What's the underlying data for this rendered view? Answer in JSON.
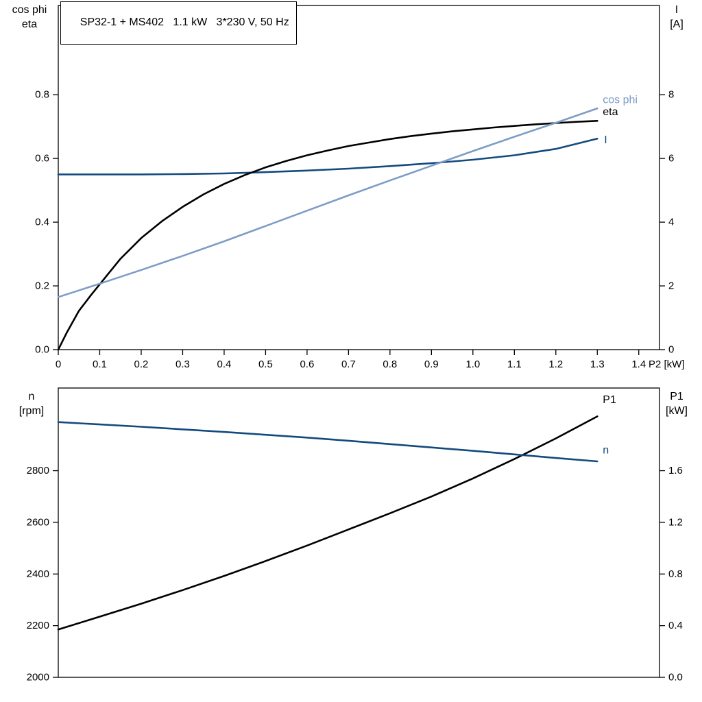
{
  "header": {
    "title": "SP32-1 + MS402   1.1 kW   3*230 V, 50 Hz"
  },
  "corner_labels": {
    "top_left_line1": "cos phi",
    "top_left_line2": "eta",
    "top_right_line1": "I",
    "top_right_line2": "[A]",
    "bottom_left_line1": "n",
    "bottom_left_line2": "[rpm]",
    "bottom_right_line1": "P1",
    "bottom_right_line2": "[kW]"
  },
  "colors": {
    "black": "#000000",
    "dark_blue": "#134a7e",
    "light_blue": "#7c9dc6",
    "frame": "#000000"
  },
  "chart_data": [
    {
      "name": "motor-electrical-chart",
      "type": "line",
      "title": "SP32-1 + MS402   1.1 kW   3*230 V, 50 Hz",
      "grid": false,
      "legend_position": "curve-end-labels",
      "x_axis": {
        "label": "P2 [kW]",
        "min": 0,
        "max": 1.45,
        "tick_values": [
          0,
          0.1,
          0.2,
          0.3,
          0.4,
          0.5,
          0.6,
          0.7,
          0.8,
          0.9,
          1.0,
          1.1,
          1.2,
          1.3,
          1.4
        ],
        "tick_labels": [
          "0",
          "0.1",
          "0.2",
          "0.3",
          "0.4",
          "0.5",
          "0.6",
          "0.7",
          "0.8",
          "0.9",
          "1.0",
          "1.1",
          "1.2",
          "1.3",
          "1.4"
        ]
      },
      "left_axis": {
        "label": "cos phi / eta",
        "min": 0,
        "max": 1.08,
        "tick_values": [
          0,
          0.2,
          0.4,
          0.6,
          0.8
        ],
        "tick_labels": [
          "0.0",
          "0.2",
          "0.4",
          "0.6",
          "0.8"
        ]
      },
      "right_axis": {
        "label": "I [A]",
        "min": 0,
        "max": 10.8,
        "tick_values": [
          0,
          2,
          4,
          6,
          8
        ],
        "tick_labels": [
          "0",
          "2",
          "4",
          "6",
          "8"
        ]
      },
      "series": [
        {
          "name": "I",
          "slug": "current",
          "label": "I",
          "axis": "right",
          "color": "#134a7e",
          "label_dx": 10,
          "label_dy": 2,
          "points": [
            [
              0,
              5.5
            ],
            [
              0.1,
              5.5
            ],
            [
              0.2,
              5.5
            ],
            [
              0.3,
              5.51
            ],
            [
              0.4,
              5.53
            ],
            [
              0.5,
              5.57
            ],
            [
              0.6,
              5.62
            ],
            [
              0.7,
              5.68
            ],
            [
              0.8,
              5.76
            ],
            [
              0.9,
              5.85
            ],
            [
              1.0,
              5.96
            ],
            [
              1.1,
              6.1
            ],
            [
              1.2,
              6.3
            ],
            [
              1.3,
              6.62
            ]
          ]
        },
        {
          "name": "eta",
          "slug": "eta",
          "label": "eta",
          "axis": "left",
          "color": "#000000",
          "label_dx": 8,
          "label_dy": -13,
          "points": [
            [
              0,
              0
            ],
            [
              0.02,
              0.052
            ],
            [
              0.05,
              0.122
            ],
            [
              0.08,
              0.173
            ],
            [
              0.1,
              0.205
            ],
            [
              0.15,
              0.285
            ],
            [
              0.2,
              0.35
            ],
            [
              0.25,
              0.403
            ],
            [
              0.3,
              0.448
            ],
            [
              0.35,
              0.487
            ],
            [
              0.4,
              0.52
            ],
            [
              0.45,
              0.548
            ],
            [
              0.5,
              0.572
            ],
            [
              0.55,
              0.592
            ],
            [
              0.6,
              0.61
            ],
            [
              0.65,
              0.625
            ],
            [
              0.7,
              0.639
            ],
            [
              0.75,
              0.65
            ],
            [
              0.8,
              0.661
            ],
            [
              0.85,
              0.67
            ],
            [
              0.9,
              0.678
            ],
            [
              0.95,
              0.685
            ],
            [
              1.0,
              0.691
            ],
            [
              1.05,
              0.697
            ],
            [
              1.1,
              0.702
            ],
            [
              1.15,
              0.707
            ],
            [
              1.2,
              0.711
            ],
            [
              1.25,
              0.715
            ],
            [
              1.3,
              0.718
            ]
          ]
        },
        {
          "name": "cos phi",
          "slug": "cos-phi",
          "label": "cos phi",
          "axis": "left",
          "color": "#7c9dc6",
          "label_dx": 8,
          "label_dy": -12,
          "points": [
            [
              0,
              0.165
            ],
            [
              0.1,
              0.207
            ],
            [
              0.2,
              0.25
            ],
            [
              0.3,
              0.294
            ],
            [
              0.4,
              0.34
            ],
            [
              0.5,
              0.388
            ],
            [
              0.6,
              0.436
            ],
            [
              0.7,
              0.484
            ],
            [
              0.8,
              0.531
            ],
            [
              0.9,
              0.577
            ],
            [
              1.0,
              0.623
            ],
            [
              1.1,
              0.668
            ],
            [
              1.2,
              0.712
            ],
            [
              1.3,
              0.757
            ]
          ]
        }
      ]
    },
    {
      "name": "motor-speed-power-chart",
      "type": "line",
      "title": "",
      "grid": false,
      "legend_position": "curve-end-labels",
      "x_axis": {
        "label": "",
        "min": 0,
        "max": 1.45,
        "tick_values": [],
        "tick_labels": []
      },
      "left_axis": {
        "label": "n [rpm]",
        "min": 2000,
        "max": 3120,
        "tick_values": [
          2000,
          2200,
          2400,
          2600,
          2800
        ],
        "tick_labels": [
          "2000",
          "2200",
          "2400",
          "2600",
          "2800"
        ]
      },
      "right_axis": {
        "label": "P1 [kW]",
        "min": 0,
        "max": 2.24,
        "tick_values": [
          0,
          0.4,
          0.8,
          1.2,
          1.6
        ],
        "tick_labels": [
          "0.0",
          "0.4",
          "0.8",
          "1.2",
          "1.6"
        ]
      },
      "series": [
        {
          "name": "P1",
          "slug": "input-power",
          "label": "P1",
          "axis": "right",
          "color": "#000000",
          "label_dx": 8,
          "label_dy": -24,
          "points": [
            [
              0,
              0.37
            ],
            [
              0.1,
              0.47
            ],
            [
              0.2,
              0.57
            ],
            [
              0.3,
              0.675
            ],
            [
              0.4,
              0.785
            ],
            [
              0.5,
              0.9
            ],
            [
              0.6,
              1.02
            ],
            [
              0.7,
              1.145
            ],
            [
              0.8,
              1.27
            ],
            [
              0.9,
              1.4
            ],
            [
              1.0,
              1.54
            ],
            [
              1.1,
              1.69
            ],
            [
              1.2,
              1.85
            ],
            [
              1.3,
              2.02
            ]
          ]
        },
        {
          "name": "n",
          "slug": "speed",
          "label": "n",
          "axis": "left",
          "color": "#134a7e",
          "label_dx": 8,
          "label_dy": -16,
          "points": [
            [
              0,
              2988
            ],
            [
              0.1,
              2979
            ],
            [
              0.2,
              2970
            ],
            [
              0.3,
              2960
            ],
            [
              0.4,
              2950
            ],
            [
              0.5,
              2939
            ],
            [
              0.6,
              2928
            ],
            [
              0.7,
              2916
            ],
            [
              0.8,
              2903
            ],
            [
              0.9,
              2890
            ],
            [
              1.0,
              2877
            ],
            [
              1.1,
              2863
            ],
            [
              1.2,
              2849
            ],
            [
              1.3,
              2836
            ]
          ]
        }
      ]
    }
  ]
}
